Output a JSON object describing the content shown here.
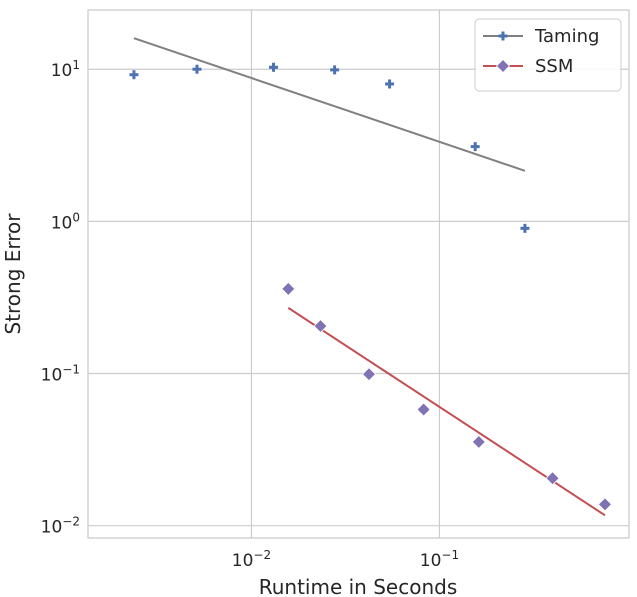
{
  "chart_data": {
    "type": "scatter",
    "xlabel": "Runtime in Seconds",
    "ylabel": "Strong Error",
    "x_scale": "log",
    "y_scale": "log",
    "xlim": [
      0.00135,
      1.02
    ],
    "ylim": [
      0.0083,
      24.5
    ],
    "grid": true,
    "legend_position": "top-right",
    "x_ticks": [
      {
        "value": 0.01,
        "mantissa": "10",
        "exponent": "−2"
      },
      {
        "value": 0.1,
        "mantissa": "10",
        "exponent": "−1"
      }
    ],
    "y_ticks": [
      {
        "value": 0.01,
        "mantissa": "10",
        "exponent": "−2"
      },
      {
        "value": 0.1,
        "mantissa": "10",
        "exponent": "−1"
      },
      {
        "value": 1,
        "mantissa": "10",
        "exponent": "0"
      },
      {
        "value": 10,
        "mantissa": "10",
        "exponent": "1"
      }
    ],
    "series": [
      {
        "name": "Taming",
        "marker": "plus",
        "marker_color": "#4c72b0",
        "line_color": "#808080",
        "points": [
          {
            "x": 0.00237,
            "y": 9.2
          },
          {
            "x": 0.00513,
            "y": 10.0
          },
          {
            "x": 0.0131,
            "y": 10.3
          },
          {
            "x": 0.0277,
            "y": 9.9
          },
          {
            "x": 0.0543,
            "y": 8.0
          },
          {
            "x": 0.155,
            "y": 3.1
          },
          {
            "x": 0.285,
            "y": 0.9
          }
        ],
        "fit": [
          {
            "x": 0.00237,
            "y": 16.0
          },
          {
            "x": 0.285,
            "y": 2.15
          }
        ]
      },
      {
        "name": "SSM",
        "marker": "diamond",
        "marker_color": "#8172b3",
        "line_color": "#c44e52",
        "points": [
          {
            "x": 0.0157,
            "y": 0.36
          },
          {
            "x": 0.0233,
            "y": 0.205
          },
          {
            "x": 0.0422,
            "y": 0.099
          },
          {
            "x": 0.0824,
            "y": 0.058
          },
          {
            "x": 0.162,
            "y": 0.0355
          },
          {
            "x": 0.4,
            "y": 0.0205
          },
          {
            "x": 0.76,
            "y": 0.0138
          }
        ],
        "fit": [
          {
            "x": 0.0157,
            "y": 0.27
          },
          {
            "x": 0.76,
            "y": 0.0117
          }
        ]
      }
    ]
  }
}
